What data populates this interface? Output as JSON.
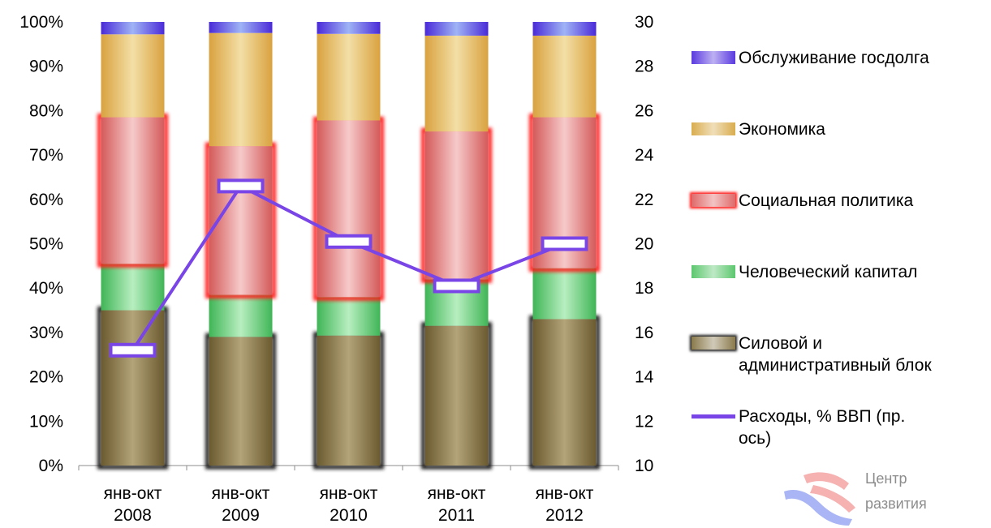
{
  "chart_data": {
    "type": "bar",
    "stacked": "percent",
    "categories": [
      "янв-окт\n2008",
      "янв-окт\n2009",
      "янв-окт\n2010",
      "янв-окт\n2011",
      "янв-окт\n2012"
    ],
    "series": [
      {
        "name": "Силовой и административный блок",
        "values": [
          35,
          29,
          29.3,
          31.5,
          33
        ],
        "color": "#8a7a4c"
      },
      {
        "name": "Человеческий капитал",
        "values": [
          10.5,
          9.5,
          8.7,
          10.5,
          11.5
        ],
        "color": "#5cc76e"
      },
      {
        "name": "Социальная политика",
        "values": [
          33,
          33.5,
          39.8,
          33.3,
          34
        ],
        "color": "#e06a6a"
      },
      {
        "name": "Экономика",
        "values": [
          18.7,
          25.5,
          19.5,
          21.6,
          18.4
        ],
        "color": "#d9ad4f"
      },
      {
        "name": "Обслуживание госдолга",
        "values": [
          2.8,
          2.5,
          2.7,
          3.1,
          3.1
        ],
        "color": "#5a3ae0"
      }
    ],
    "line": {
      "name": "Расходы, % ВВП  (пр. ось)",
      "values": [
        15.2,
        22.6,
        20.1,
        18.1,
        20.0
      ],
      "color": "#7a45e6",
      "axis": "right"
    },
    "y_ticks": [
      "0%",
      "10%",
      "20%",
      "30%",
      "40%",
      "50%",
      "60%",
      "70%",
      "80%",
      "90%",
      "100%"
    ],
    "y2_ticks": [
      "10",
      "12",
      "14",
      "16",
      "18",
      "20",
      "22",
      "24",
      "26",
      "28",
      "30"
    ],
    "ylim": [
      0,
      100
    ],
    "y2lim": [
      10,
      30
    ],
    "grid": false,
    "legend_position": "right"
  },
  "legend": {
    "items": [
      {
        "label": "Обслуживание госдолга",
        "kind": "bar",
        "color": "#5a3ae0"
      },
      {
        "label": "Экономика",
        "kind": "bar",
        "color": "#d9ad4f"
      },
      {
        "label": "Социальная политика",
        "kind": "bar",
        "color": "#e06a6a"
      },
      {
        "label": "Человеческий капитал",
        "kind": "bar",
        "color": "#5cc76e"
      },
      {
        "label": "Силовой и\nадминистративный блок",
        "kind": "bar",
        "color": "#8a7a4c"
      },
      {
        "label": "Расходы, % ВВП  (пр.\nось)",
        "kind": "line",
        "color": "#7a45e6"
      }
    ]
  },
  "logo": {
    "line1": "Центр",
    "line2": "развития"
  }
}
